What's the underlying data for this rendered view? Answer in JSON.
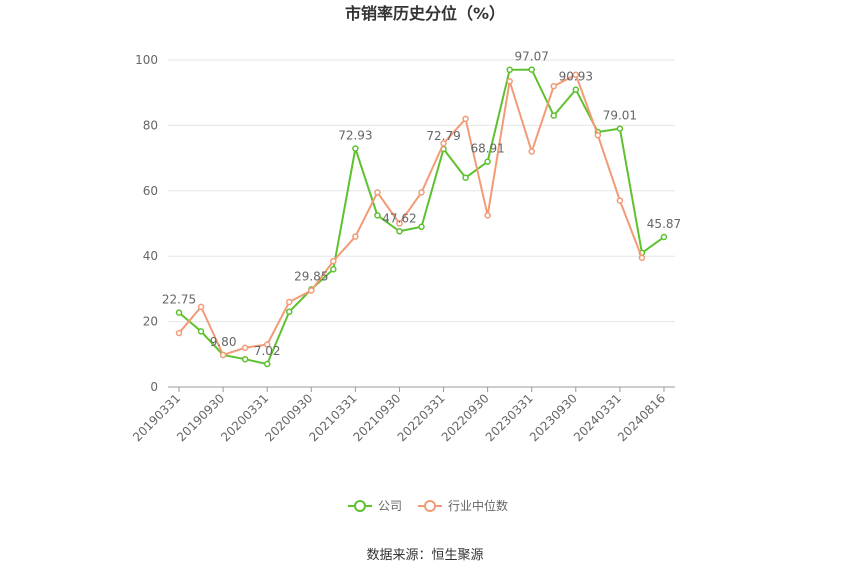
{
  "chart_data": {
    "type": "line",
    "title": "市销率历史分位（%）",
    "categories": [
      "20190331",
      null,
      "20190930",
      null,
      "20200331",
      null,
      "20200930",
      null,
      "20210331",
      null,
      "20210930",
      null,
      "20220331",
      null,
      "20220930",
      null,
      "20230331",
      null,
      "20230930",
      null,
      "20240331",
      null,
      "20240816"
    ],
    "series": [
      {
        "name": "公司",
        "color": "#5ec12f",
        "values": [
          22.75,
          17,
          9.8,
          8.5,
          7.02,
          23,
          29.85,
          36,
          72.93,
          52.5,
          47.62,
          49,
          72.79,
          64,
          68.91,
          97,
          97.07,
          83,
          90.93,
          78,
          79.01,
          41,
          45.87
        ],
        "value_labels": [
          "22.75",
          null,
          "9.80",
          null,
          "7.02",
          null,
          "29.85",
          null,
          "72.93",
          null,
          "47.62",
          null,
          "72.79",
          null,
          "68.91",
          null,
          "97.07",
          null,
          "90.93",
          null,
          "79.01",
          null,
          "45.87"
        ]
      },
      {
        "name": "行业中位数",
        "color": "#f29b76",
        "values": [
          16.5,
          24.5,
          9.8,
          12,
          13,
          26,
          29.5,
          38.5,
          46,
          59.5,
          50,
          59.5,
          74.5,
          82,
          52.5,
          93.5,
          72,
          92,
          95.5,
          77,
          57,
          39.5,
          null
        ]
      }
    ],
    "ylim": [
      0,
      100
    ],
    "yticks": [
      0,
      20,
      40,
      60,
      80,
      100
    ],
    "grid": true,
    "source": "数据来源：恒生聚源"
  }
}
